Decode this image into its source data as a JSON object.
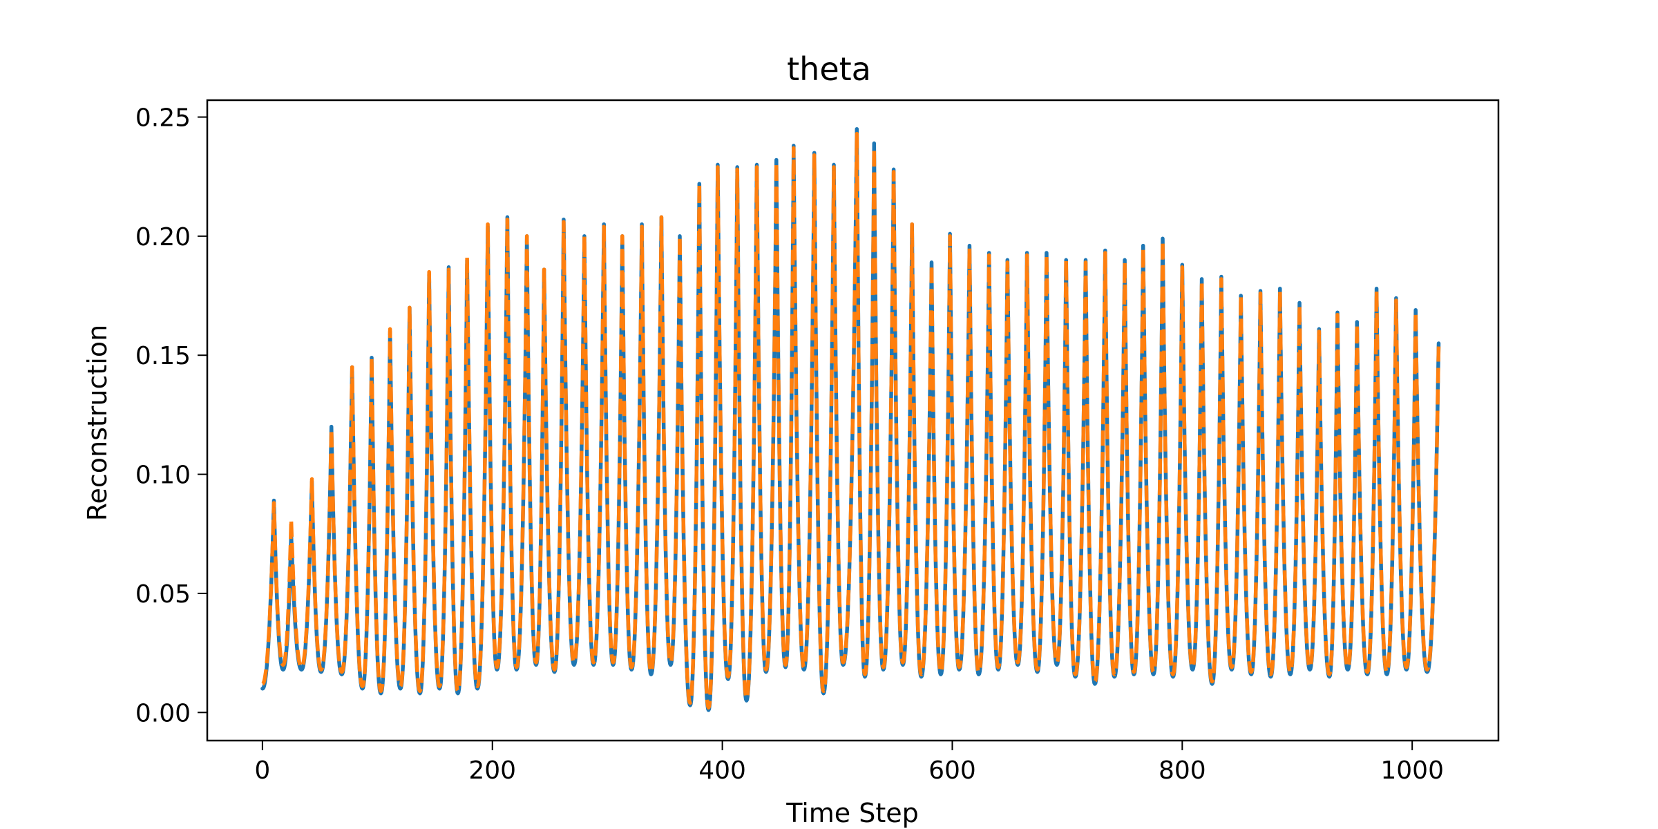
{
  "chart_data": {
    "type": "line",
    "title": "theta",
    "xlabel": "Time Step",
    "ylabel": "Reconstruction",
    "xlim": [
      -48,
      1075
    ],
    "ylim": [
      -0.0118,
      0.2571
    ],
    "xticks": [
      0,
      200,
      400,
      600,
      800,
      1000
    ],
    "xtick_labels": [
      "0",
      "200",
      "400",
      "600",
      "800",
      "1000"
    ],
    "yticks": [
      0.0,
      0.05,
      0.1,
      0.15,
      0.2,
      0.25
    ],
    "ytick_labels": [
      "0.00",
      "0.05",
      "0.10",
      "0.15",
      "0.20",
      "0.25"
    ],
    "grid": false,
    "legend": "none",
    "x_range": [
      0,
      1023
    ],
    "series": [
      {
        "color": "#1f77b4",
        "style": "solid",
        "peaks": [
          [
            10,
            0.089
          ],
          [
            25,
            0.075
          ],
          [
            43,
            0.097
          ],
          [
            60,
            0.12
          ],
          [
            78,
            0.145
          ],
          [
            95,
            0.149
          ],
          [
            111,
            0.16
          ],
          [
            128,
            0.17
          ],
          [
            145,
            0.184
          ],
          [
            162,
            0.187
          ],
          [
            178,
            0.19
          ],
          [
            196,
            0.204
          ],
          [
            213,
            0.208
          ],
          [
            230,
            0.2
          ],
          [
            245,
            0.186
          ],
          [
            262,
            0.207
          ],
          [
            280,
            0.2
          ],
          [
            297,
            0.205
          ],
          [
            313,
            0.2
          ],
          [
            330,
            0.205
          ],
          [
            347,
            0.208
          ],
          [
            363,
            0.2
          ],
          [
            380,
            0.222
          ],
          [
            396,
            0.23
          ],
          [
            413,
            0.229
          ],
          [
            430,
            0.23
          ],
          [
            447,
            0.232
          ],
          [
            462,
            0.238
          ],
          [
            480,
            0.235
          ],
          [
            497,
            0.23
          ],
          [
            517,
            0.245
          ],
          [
            532,
            0.239
          ],
          [
            549,
            0.228
          ],
          [
            565,
            0.205
          ],
          [
            582,
            0.189
          ],
          [
            598,
            0.201
          ],
          [
            615,
            0.196
          ],
          [
            632,
            0.193
          ],
          [
            648,
            0.19
          ],
          [
            665,
            0.193
          ],
          [
            682,
            0.193
          ],
          [
            699,
            0.19
          ],
          [
            716,
            0.19
          ],
          [
            733,
            0.194
          ],
          [
            750,
            0.19
          ],
          [
            766,
            0.196
          ],
          [
            783,
            0.199
          ],
          [
            800,
            0.188
          ],
          [
            817,
            0.182
          ],
          [
            834,
            0.183
          ],
          [
            851,
            0.175
          ],
          [
            868,
            0.177
          ],
          [
            885,
            0.178
          ],
          [
            902,
            0.172
          ],
          [
            919,
            0.161
          ],
          [
            935,
            0.168
          ],
          [
            952,
            0.164
          ],
          [
            969,
            0.178
          ],
          [
            986,
            0.174
          ],
          [
            1003,
            0.169
          ],
          [
            1023,
            0.155
          ]
        ],
        "troughs": [
          [
            0,
            0.01
          ],
          [
            18,
            0.018
          ],
          [
            34,
            0.018
          ],
          [
            51,
            0.017
          ],
          [
            69,
            0.016
          ],
          [
            87,
            0.01
          ],
          [
            103,
            0.008
          ],
          [
            120,
            0.01
          ],
          [
            137,
            0.008
          ],
          [
            154,
            0.01
          ],
          [
            170,
            0.008
          ],
          [
            187,
            0.01
          ],
          [
            204,
            0.018
          ],
          [
            221,
            0.018
          ],
          [
            238,
            0.02
          ],
          [
            254,
            0.017
          ],
          [
            271,
            0.02
          ],
          [
            288,
            0.02
          ],
          [
            305,
            0.02
          ],
          [
            321,
            0.018
          ],
          [
            338,
            0.016
          ],
          [
            355,
            0.02
          ],
          [
            372,
            0.003
          ],
          [
            388,
            0.001
          ],
          [
            405,
            0.014
          ],
          [
            421,
            0.005
          ],
          [
            438,
            0.017
          ],
          [
            455,
            0.019
          ],
          [
            471,
            0.018
          ],
          [
            488,
            0.008
          ],
          [
            505,
            0.02
          ],
          [
            524,
            0.015
          ],
          [
            540,
            0.018
          ],
          [
            557,
            0.02
          ],
          [
            573,
            0.015
          ],
          [
            590,
            0.016
          ],
          [
            606,
            0.018
          ],
          [
            623,
            0.016
          ],
          [
            640,
            0.018
          ],
          [
            657,
            0.02
          ],
          [
            674,
            0.017
          ],
          [
            691,
            0.02
          ],
          [
            707,
            0.015
          ],
          [
            724,
            0.012
          ],
          [
            741,
            0.015
          ],
          [
            758,
            0.016
          ],
          [
            775,
            0.016
          ],
          [
            792,
            0.015
          ],
          [
            809,
            0.018
          ],
          [
            826,
            0.012
          ],
          [
            843,
            0.018
          ],
          [
            860,
            0.016
          ],
          [
            877,
            0.015
          ],
          [
            894,
            0.016
          ],
          [
            911,
            0.018
          ],
          [
            928,
            0.015
          ],
          [
            944,
            0.018
          ],
          [
            961,
            0.016
          ],
          [
            978,
            0.016
          ],
          [
            995,
            0.018
          ],
          [
            1013,
            0.017
          ]
        ]
      },
      {
        "color": "#ff7f0e",
        "style": "dashed",
        "peaks": [
          [
            10,
            0.088
          ],
          [
            25,
            0.081
          ],
          [
            43,
            0.098
          ],
          [
            60,
            0.119
          ],
          [
            78,
            0.145
          ],
          [
            95,
            0.149
          ],
          [
            111,
            0.161
          ],
          [
            128,
            0.17
          ],
          [
            145,
            0.185
          ],
          [
            162,
            0.186
          ],
          [
            178,
            0.191
          ],
          [
            196,
            0.205
          ],
          [
            213,
            0.207
          ],
          [
            230,
            0.2
          ],
          [
            245,
            0.186
          ],
          [
            262,
            0.206
          ],
          [
            280,
            0.2
          ],
          [
            297,
            0.204
          ],
          [
            313,
            0.2
          ],
          [
            330,
            0.204
          ],
          [
            347,
            0.208
          ],
          [
            363,
            0.2
          ],
          [
            380,
            0.222
          ],
          [
            396,
            0.229
          ],
          [
            413,
            0.228
          ],
          [
            430,
            0.229
          ],
          [
            447,
            0.231
          ],
          [
            462,
            0.237
          ],
          [
            480,
            0.234
          ],
          [
            497,
            0.229
          ],
          [
            517,
            0.243
          ],
          [
            532,
            0.237
          ],
          [
            549,
            0.227
          ],
          [
            565,
            0.205
          ],
          [
            582,
            0.188
          ],
          [
            598,
            0.2
          ],
          [
            615,
            0.195
          ],
          [
            632,
            0.192
          ],
          [
            648,
            0.189
          ],
          [
            665,
            0.192
          ],
          [
            682,
            0.192
          ],
          [
            699,
            0.19
          ],
          [
            716,
            0.189
          ],
          [
            733,
            0.193
          ],
          [
            750,
            0.189
          ],
          [
            766,
            0.195
          ],
          [
            783,
            0.198
          ],
          [
            800,
            0.187
          ],
          [
            817,
            0.181
          ],
          [
            834,
            0.182
          ],
          [
            851,
            0.175
          ],
          [
            868,
            0.176
          ],
          [
            885,
            0.177
          ],
          [
            902,
            0.171
          ],
          [
            919,
            0.16
          ],
          [
            935,
            0.167
          ],
          [
            952,
            0.163
          ],
          [
            969,
            0.177
          ],
          [
            986,
            0.173
          ],
          [
            1003,
            0.168
          ],
          [
            1023,
            0.154
          ]
        ],
        "troughs": [
          [
            0,
            0.012
          ],
          [
            18,
            0.02
          ],
          [
            34,
            0.019
          ],
          [
            51,
            0.018
          ],
          [
            69,
            0.017
          ],
          [
            87,
            0.011
          ],
          [
            103,
            0.009
          ],
          [
            120,
            0.011
          ],
          [
            137,
            0.009
          ],
          [
            154,
            0.011
          ],
          [
            170,
            0.009
          ],
          [
            187,
            0.011
          ],
          [
            204,
            0.019
          ],
          [
            221,
            0.019
          ],
          [
            238,
            0.021
          ],
          [
            254,
            0.018
          ],
          [
            271,
            0.021
          ],
          [
            288,
            0.021
          ],
          [
            305,
            0.021
          ],
          [
            321,
            0.019
          ],
          [
            338,
            0.017
          ],
          [
            355,
            0.021
          ],
          [
            372,
            0.004
          ],
          [
            388,
            0.002
          ],
          [
            405,
            0.015
          ],
          [
            421,
            0.006
          ],
          [
            438,
            0.018
          ],
          [
            455,
            0.02
          ],
          [
            471,
            0.019
          ],
          [
            488,
            0.009
          ],
          [
            505,
            0.021
          ],
          [
            524,
            0.016
          ],
          [
            540,
            0.019
          ],
          [
            557,
            0.021
          ],
          [
            573,
            0.016
          ],
          [
            590,
            0.017
          ],
          [
            606,
            0.019
          ],
          [
            623,
            0.017
          ],
          [
            640,
            0.019
          ],
          [
            657,
            0.021
          ],
          [
            674,
            0.018
          ],
          [
            691,
            0.021
          ],
          [
            707,
            0.016
          ],
          [
            724,
            0.013
          ],
          [
            741,
            0.016
          ],
          [
            758,
            0.017
          ],
          [
            775,
            0.017
          ],
          [
            792,
            0.016
          ],
          [
            809,
            0.019
          ],
          [
            826,
            0.013
          ],
          [
            843,
            0.019
          ],
          [
            860,
            0.017
          ],
          [
            877,
            0.016
          ],
          [
            894,
            0.017
          ],
          [
            911,
            0.019
          ],
          [
            928,
            0.016
          ],
          [
            944,
            0.019
          ],
          [
            961,
            0.017
          ],
          [
            978,
            0.017
          ],
          [
            995,
            0.019
          ],
          [
            1013,
            0.018
          ]
        ]
      }
    ]
  }
}
